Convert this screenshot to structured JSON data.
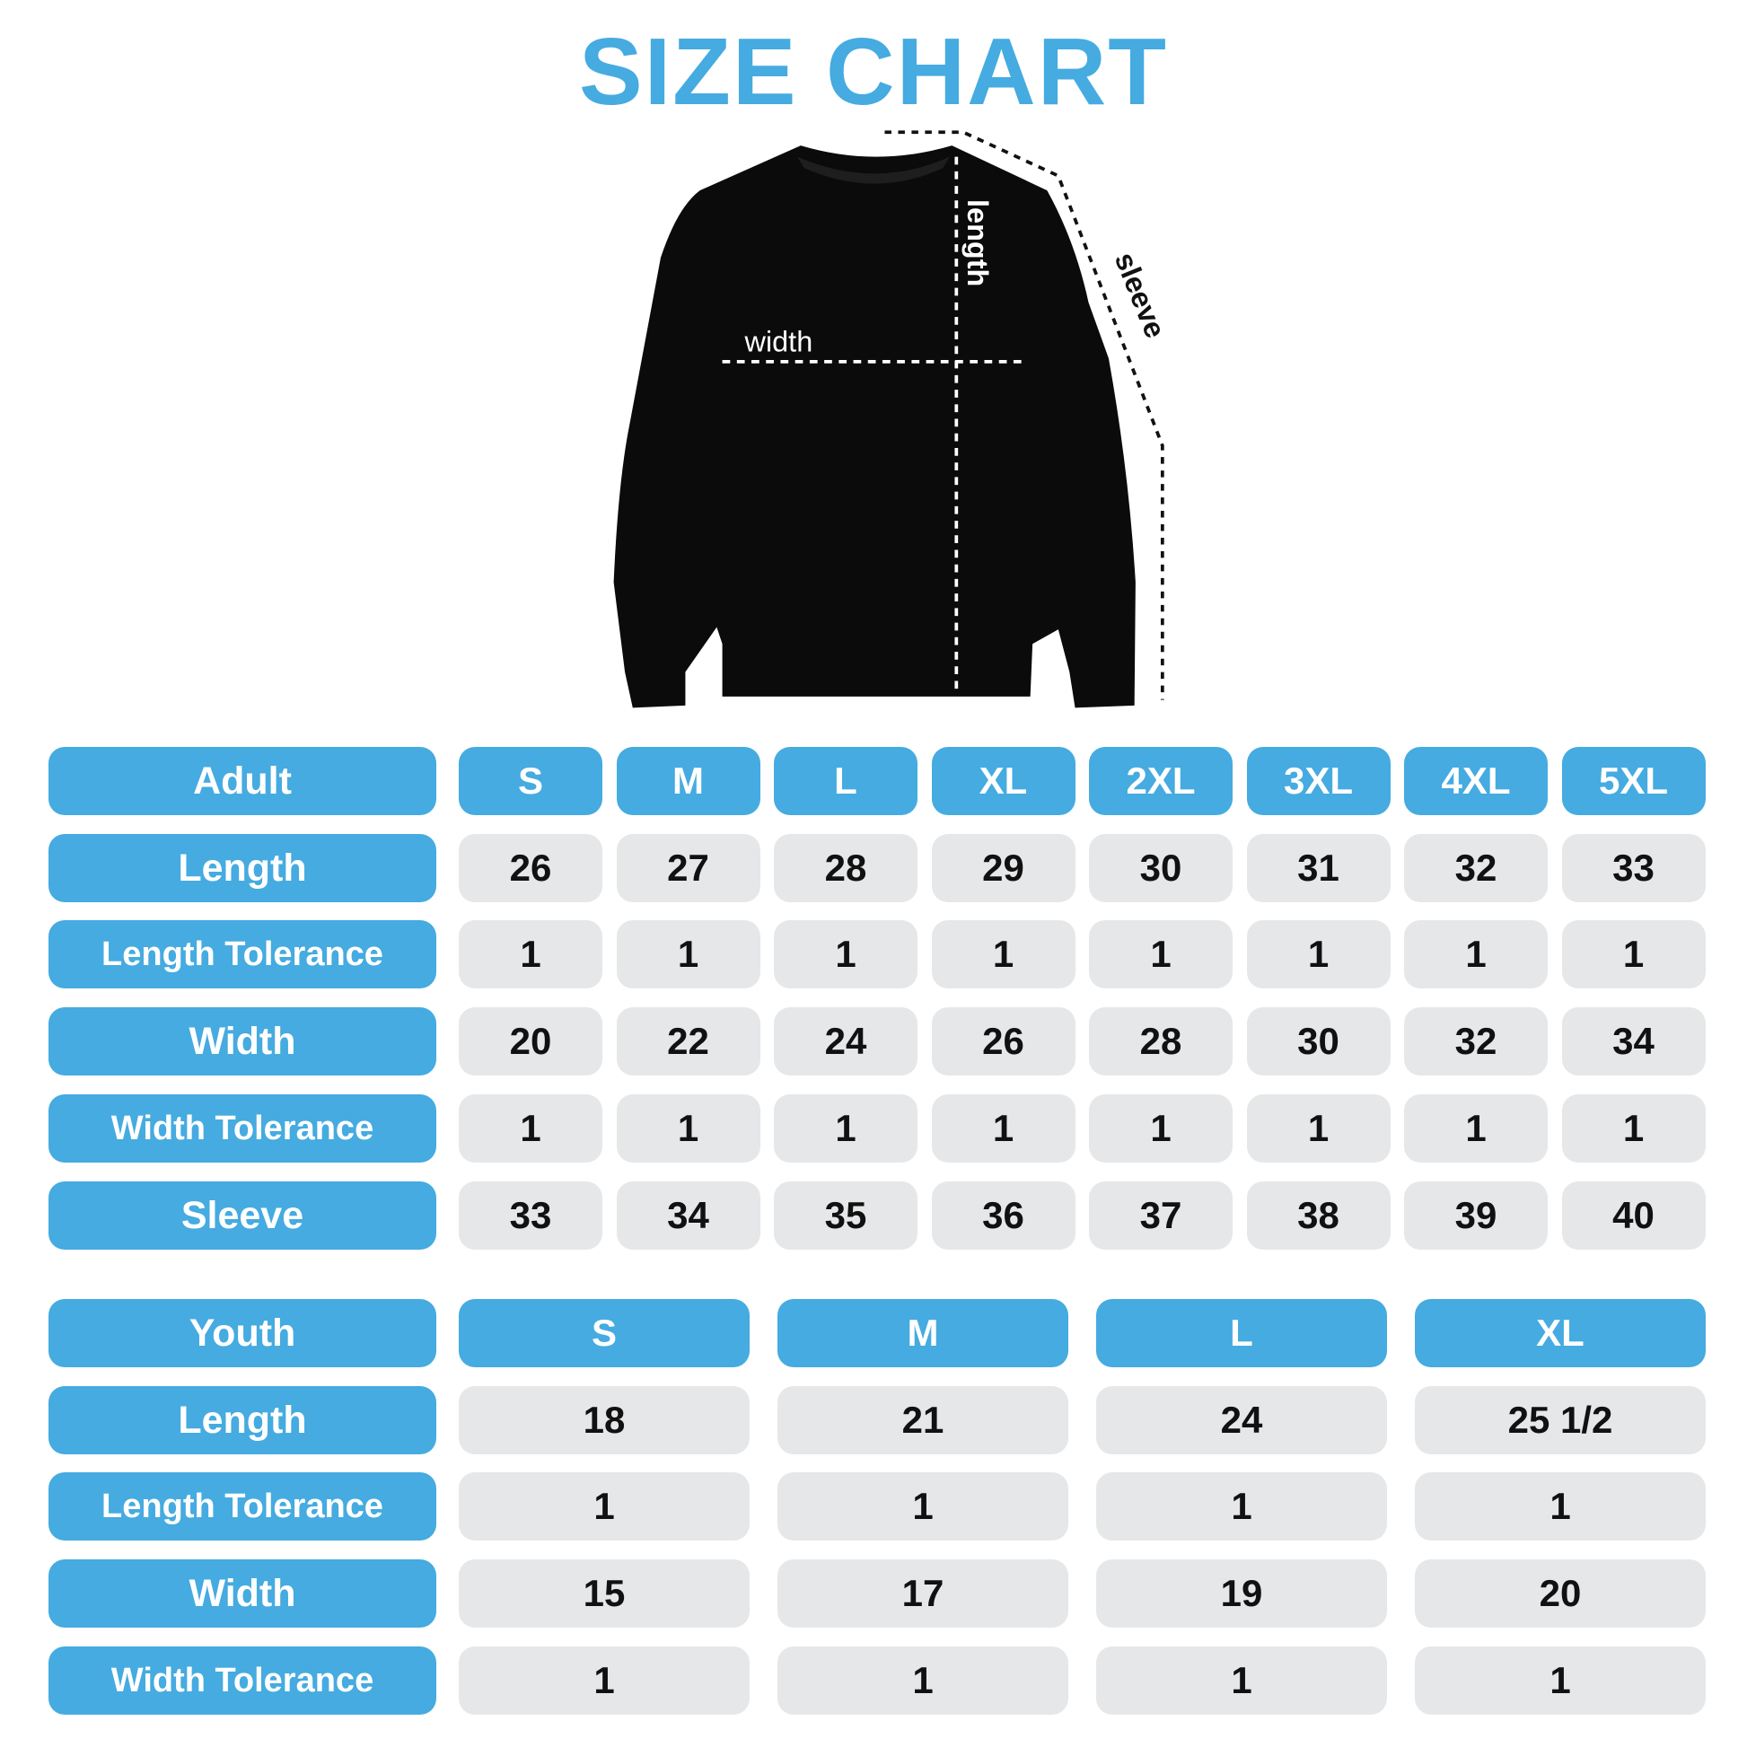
{
  "title": "SIZE CHART",
  "garment": {
    "labels": {
      "width": "width",
      "length": "length",
      "sleeve": "sleeve"
    }
  },
  "colors": {
    "accent": "#45abe0",
    "cell_bg": "#e6e7e9",
    "text": "#111111"
  },
  "adult": {
    "header": "Adult",
    "sizes": [
      "S",
      "M",
      "L",
      "XL",
      "2XL",
      "3XL",
      "4XL",
      "5XL"
    ],
    "rows": [
      {
        "label": "Length",
        "values": [
          "26",
          "27",
          "28",
          "29",
          "30",
          "31",
          "32",
          "33"
        ]
      },
      {
        "label": "Length Tolerance",
        "values": [
          "1",
          "1",
          "1",
          "1",
          "1",
          "1",
          "1",
          "1"
        ]
      },
      {
        "label": "Width",
        "values": [
          "20",
          "22",
          "24",
          "26",
          "28",
          "30",
          "32",
          "34"
        ]
      },
      {
        "label": "Width Tolerance",
        "values": [
          "1",
          "1",
          "1",
          "1",
          "1",
          "1",
          "1",
          "1"
        ]
      },
      {
        "label": "Sleeve",
        "values": [
          "33",
          "34",
          "35",
          "36",
          "37",
          "38",
          "39",
          "40"
        ]
      }
    ]
  },
  "youth": {
    "header": "Youth",
    "sizes": [
      "S",
      "M",
      "L",
      "XL"
    ],
    "rows": [
      {
        "label": "Length",
        "values": [
          "18",
          "21",
          "24",
          "25 1/2"
        ]
      },
      {
        "label": "Length Tolerance",
        "values": [
          "1",
          "1",
          "1",
          "1"
        ]
      },
      {
        "label": "Width",
        "values": [
          "15",
          "17",
          "19",
          "20"
        ]
      },
      {
        "label": "Width Tolerance",
        "values": [
          "1",
          "1",
          "1",
          "1"
        ]
      }
    ]
  }
}
